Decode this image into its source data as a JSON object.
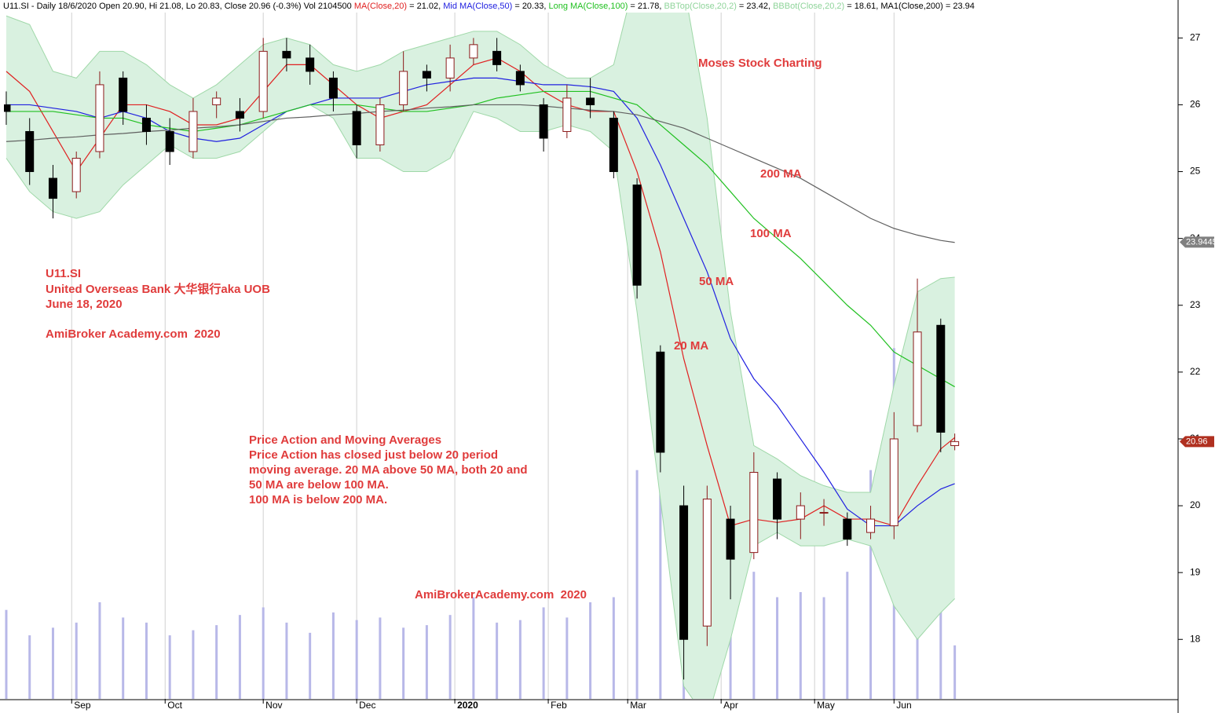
{
  "chart_data": {
    "type": "candlestick",
    "header": [
      {
        "text": "U11.SI - Daily 18/6/2020 Open 20.90, Hi 21.08, Lo 20.83, Close 20.96 (-0.3%) Vol 2104500 ",
        "color": "#000000"
      },
      {
        "text": "MA(Close,20)",
        "color": "#e02020"
      },
      {
        "text": " = 21.02, ",
        "color": "#000000"
      },
      {
        "text": "Mid MA(Close,50)",
        "color": "#2020e0"
      },
      {
        "text": " = 20.33, ",
        "color": "#000000"
      },
      {
        "text": "Long MA(Close,100)",
        "color": "#20c020"
      },
      {
        "text": " = 21.78, ",
        "color": "#000000"
      },
      {
        "text": "BBTop(Close,20,2)",
        "color": "#8fd49a"
      },
      {
        "text": " = 23.42, ",
        "color": "#000000"
      },
      {
        "text": "BBBot(Close,20,2)",
        "color": "#8fd49a"
      },
      {
        "text": " = 18.61, ",
        "color": "#000000"
      },
      {
        "text": "MA1(Close,200)",
        "color": "#000000"
      },
      {
        "text": " = 23.94",
        "color": "#000000"
      }
    ],
    "annotations": [
      "Moses Stock Charting",
      "200 MA",
      "100 MA",
      "50 MA",
      "20 MA",
      "U11.SI",
      "United Overseas Bank 大华银行aka UOB",
      "June 18, 2020",
      "AmiBroker Academy.com  2020",
      "Price Action and Moving Averages",
      "Price Action has closed just below 20 period",
      "moving average. 20 MA above 50 MA, both 20 and",
      "50 MA are below 100 MA.",
      "100 MA is below 200 MA.",
      "AmiBrokerAcademy.com  2020"
    ],
    "x": [
      0,
      5,
      10,
      15,
      20,
      25,
      30,
      35,
      40,
      45,
      50,
      55,
      60,
      65,
      70,
      75,
      80,
      85,
      90,
      95,
      100,
      105,
      110,
      115,
      120,
      125,
      130,
      135,
      140,
      145,
      150,
      155,
      160,
      165,
      170,
      175,
      180,
      185,
      190,
      195,
      200,
      203
    ],
    "open": [
      26.0,
      25.6,
      24.9,
      24.7,
      25.3,
      26.4,
      25.8,
      25.6,
      25.3,
      26.0,
      25.9,
      25.9,
      26.8,
      26.7,
      26.4,
      25.9,
      25.4,
      26.0,
      26.5,
      26.4,
      26.7,
      26.8,
      26.5,
      26.0,
      25.6,
      26.1,
      25.8,
      24.8,
      22.3,
      20.0,
      18.2,
      19.8,
      19.3,
      20.4,
      19.8,
      19.9,
      19.8,
      19.6,
      19.7,
      21.2,
      22.7,
      20.9
    ],
    "high": [
      26.2,
      25.8,
      25.1,
      25.3,
      26.5,
      26.5,
      26.0,
      25.8,
      26.1,
      26.2,
      26.1,
      27.0,
      27.0,
      26.9,
      26.5,
      26.0,
      26.1,
      26.8,
      26.6,
      26.9,
      27.0,
      27.0,
      26.6,
      26.1,
      26.3,
      26.4,
      25.9,
      24.9,
      22.4,
      20.3,
      20.3,
      20.0,
      20.8,
      20.5,
      20.2,
      20.1,
      19.9,
      20.0,
      21.4,
      23.4,
      22.8,
      21.08
    ],
    "low": [
      25.7,
      24.8,
      24.3,
      24.6,
      25.2,
      25.7,
      25.4,
      25.1,
      25.2,
      25.8,
      25.6,
      25.8,
      26.5,
      26.3,
      25.9,
      25.2,
      25.3,
      25.9,
      26.2,
      26.2,
      26.6,
      26.5,
      26.2,
      25.3,
      25.5,
      25.8,
      24.9,
      23.1,
      20.5,
      17.4,
      17.9,
      18.6,
      19.2,
      19.5,
      19.5,
      19.7,
      19.4,
      19.5,
      19.5,
      21.1,
      20.8,
      20.83
    ],
    "close": [
      25.9,
      25.0,
      24.6,
      25.2,
      26.3,
      25.9,
      25.6,
      25.3,
      25.9,
      26.1,
      25.8,
      26.8,
      26.7,
      26.5,
      26.1,
      25.4,
      26.0,
      26.5,
      26.4,
      26.7,
      26.9,
      26.6,
      26.3,
      25.5,
      26.1,
      26.0,
      25.0,
      23.3,
      20.8,
      18.0,
      20.1,
      19.2,
      20.5,
      19.8,
      20.0,
      19.9,
      19.5,
      19.8,
      21.0,
      22.6,
      21.1,
      20.96
    ],
    "volume": [
      3500000,
      2500000,
      2800000,
      3000000,
      3800000,
      3200000,
      3000000,
      2500000,
      2700000,
      2900000,
      3300000,
      3600000,
      3000000,
      2600000,
      3400000,
      3100000,
      3200000,
      2800000,
      2900000,
      3300000,
      4000000,
      3000000,
      3100000,
      3600000,
      3200000,
      3800000,
      4000000,
      9000000,
      10000000,
      12000000,
      7000000,
      5500000,
      5000000,
      4000000,
      4200000,
      4000000,
      5000000,
      9000000,
      13800000,
      8000000,
      7000000,
      2104500
    ],
    "up_color": "#8b1a1a",
    "down_color": "#000000",
    "volume_color": "#b8b8e8",
    "overlays": [
      {
        "color": "#e02020",
        "values": [
          26.5,
          26.2,
          25.6,
          25.0,
          25.5,
          26.0,
          26.0,
          25.9,
          25.7,
          25.7,
          25.8,
          26.2,
          26.6,
          26.6,
          26.3,
          26.0,
          25.8,
          25.9,
          26.0,
          26.3,
          26.6,
          26.7,
          26.5,
          26.2,
          26.0,
          25.9,
          25.9,
          25.0,
          23.8,
          22.2,
          20.9,
          19.7,
          19.8,
          19.75,
          19.8,
          20.0,
          19.8,
          19.8,
          19.7,
          20.3,
          20.85,
          21.02
        ]
      },
      {
        "color": "#2020e0",
        "values": [
          26.0,
          26.0,
          25.95,
          25.9,
          25.8,
          25.9,
          25.8,
          25.6,
          25.5,
          25.45,
          25.5,
          25.7,
          25.9,
          26.0,
          26.1,
          26.1,
          26.1,
          26.2,
          26.3,
          26.35,
          26.4,
          26.4,
          26.35,
          26.3,
          26.3,
          26.27,
          26.2,
          25.8,
          25.1,
          24.3,
          23.5,
          22.5,
          21.9,
          21.5,
          21.0,
          20.5,
          19.95,
          19.7,
          19.7,
          20.0,
          20.25,
          20.33
        ]
      },
      {
        "color": "#20c020",
        "values": [
          25.9,
          25.9,
          25.9,
          25.85,
          25.8,
          25.8,
          25.7,
          25.65,
          25.6,
          25.65,
          25.7,
          25.8,
          25.9,
          26.0,
          26.0,
          26.0,
          25.95,
          25.9,
          25.9,
          25.95,
          26.0,
          26.1,
          26.15,
          26.2,
          26.2,
          26.2,
          26.1,
          26.0,
          25.7,
          25.4,
          25.1,
          24.7,
          24.3,
          24.0,
          23.7,
          23.35,
          23.0,
          22.7,
          22.3,
          22.1,
          21.9,
          21.78
        ]
      },
      {
        "color": "#606060",
        "values": [
          25.45,
          25.47,
          25.5,
          25.52,
          25.55,
          25.57,
          25.6,
          25.62,
          25.65,
          25.67,
          25.7,
          25.75,
          25.8,
          25.82,
          25.85,
          25.87,
          25.9,
          25.92,
          25.95,
          25.97,
          26.0,
          26.0,
          26.0,
          25.98,
          25.95,
          25.92,
          25.9,
          25.85,
          25.75,
          25.65,
          25.5,
          25.35,
          25.2,
          25.05,
          24.9,
          24.7,
          24.5,
          24.3,
          24.15,
          24.05,
          23.97,
          23.94
        ]
      }
    ],
    "bands": {
      "color": "#9fd8a8",
      "fill": "#d9f1e0",
      "top": [
        27.33,
        27.2,
        26.5,
        26.4,
        26.8,
        26.8,
        26.6,
        26.3,
        26.1,
        26.3,
        26.6,
        26.9,
        27.0,
        26.9,
        26.6,
        26.5,
        26.6,
        26.8,
        26.9,
        27.0,
        27.1,
        27.1,
        26.9,
        26.6,
        26.4,
        26.4,
        26.6,
        28.0,
        28.5,
        27.8,
        25.8,
        22.9,
        20.9,
        20.7,
        20.45,
        20.3,
        20.2,
        20.2,
        21.8,
        23.2,
        23.4,
        23.42
      ],
      "bottom": [
        25.2,
        24.7,
        24.4,
        24.3,
        24.4,
        24.8,
        25.1,
        25.4,
        25.2,
        25.2,
        25.3,
        25.6,
        25.9,
        26.0,
        25.8,
        25.2,
        25.2,
        25.0,
        25.0,
        25.2,
        25.9,
        25.8,
        25.6,
        25.6,
        25.7,
        25.6,
        25.3,
        22.9,
        20.1,
        17.3,
        16.8,
        18.0,
        19.4,
        19.6,
        19.4,
        19.4,
        19.5,
        19.4,
        18.5,
        18.0,
        18.4,
        18.61
      ]
    },
    "price_markers": [
      {
        "value": 23.9445,
        "color": "#808080"
      },
      {
        "value": 20.96,
        "color": "#b03020"
      }
    ],
    "xlim": [
      -0.5,
      250.8
    ],
    "xticks": [
      {
        "value": 14,
        "label": "Sep"
      },
      {
        "value": 34,
        "label": "Oct"
      },
      {
        "value": 55,
        "label": "Nov"
      },
      {
        "value": 75,
        "label": "Dec"
      },
      {
        "value": 96,
        "label": "2020"
      },
      {
        "value": 116,
        "label": "Feb"
      },
      {
        "value": 133,
        "label": "Mar"
      },
      {
        "value": 153,
        "label": "Apr"
      },
      {
        "value": 173,
        "label": "May"
      },
      {
        "value": 190,
        "label": "Jun"
      }
    ],
    "ylim": [
      17.11,
      27.38
    ],
    "yticks": [
      18,
      19,
      20,
      21,
      22,
      23,
      24,
      25,
      26,
      27
    ],
    "volume_ylim": [
      0,
      27000000
    ],
    "grid": true
  }
}
